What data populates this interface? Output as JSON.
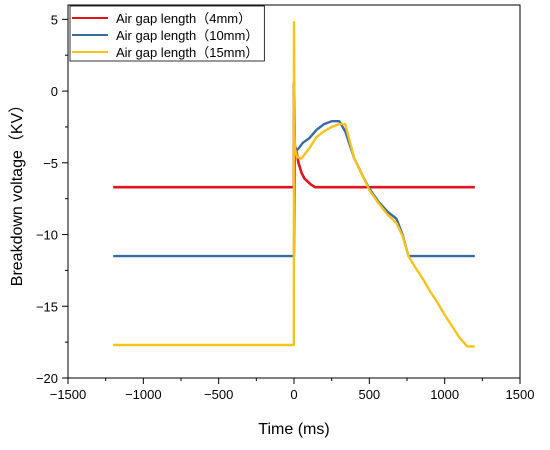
{
  "chart_data": {
    "type": "line",
    "title": "",
    "xlabel": "Time (ms)",
    "ylabel": "Breakdown voltage（KV）",
    "xlim": [
      -1500,
      1500
    ],
    "ylim": [
      -20,
      6
    ],
    "xticks": [
      -1500,
      -1000,
      -500,
      0,
      500,
      1000,
      1500
    ],
    "yticks": [
      -20,
      -15,
      -10,
      -5,
      0,
      5
    ],
    "xtick_labels": [
      "−1500",
      "−1000",
      "−500",
      "0",
      "500",
      "1000",
      "1500"
    ],
    "ytick_labels": [
      "−20",
      "−15",
      "−10",
      "−5",
      "0",
      "5"
    ],
    "grid": false,
    "legend_position": "top-left",
    "series": [
      {
        "name": "Air gap length（4mm）",
        "color": "#e0141e",
        "x": [
          -1200,
          -5,
          -1,
          0,
          2,
          5,
          15,
          30,
          50,
          70,
          90,
          110,
          140,
          1200
        ],
        "y": [
          -6.7,
          -6.7,
          -6.7,
          0.6,
          -0.5,
          -3.8,
          -4.2,
          -5.0,
          -5.7,
          -6.1,
          -6.3,
          -6.5,
          -6.7,
          -6.7
        ]
      },
      {
        "name": "Air gap length（10mm）",
        "color": "#3a6aa3",
        "x": [
          -1200,
          -5,
          0,
          5,
          30,
          60,
          100,
          150,
          200,
          250,
          300,
          340,
          400,
          460,
          500,
          560,
          620,
          680,
          720,
          760,
          800,
          850,
          900,
          950,
          1000,
          1050,
          1100,
          1200
        ],
        "y": [
          -11.5,
          -11.5,
          -11.5,
          -4.3,
          -4.0,
          -3.6,
          -3.3,
          -2.7,
          -2.3,
          -2.1,
          -2.1,
          -2.8,
          -4.7,
          -6.0,
          -6.8,
          -7.7,
          -8.4,
          -8.9,
          -10.0,
          -11.5,
          -11.5,
          -11.5,
          -11.5,
          -11.5,
          -11.5,
          -11.5,
          -11.5,
          -11.5
        ]
      },
      {
        "name": "Air gap length（15mm）",
        "color": "#f7c31a",
        "x": [
          -1200,
          -5,
          -1,
          0,
          3,
          6,
          20,
          50,
          100,
          150,
          200,
          250,
          300,
          340,
          400,
          460,
          500,
          560,
          620,
          680,
          720,
          760,
          800,
          850,
          900,
          950,
          1000,
          1050,
          1100,
          1150,
          1170,
          1200
        ],
        "y": [
          -17.7,
          -17.7,
          -17.7,
          4.8,
          -3.0,
          -4.0,
          -4.6,
          -4.7,
          -4.0,
          -3.2,
          -2.8,
          -2.5,
          -2.3,
          -2.3,
          -4.7,
          -6.0,
          -6.9,
          -7.8,
          -8.6,
          -9.2,
          -10.1,
          -11.5,
          -12.2,
          -13.0,
          -13.9,
          -14.7,
          -15.6,
          -16.4,
          -17.2,
          -17.8,
          -17.8,
          -17.8
        ]
      }
    ]
  }
}
